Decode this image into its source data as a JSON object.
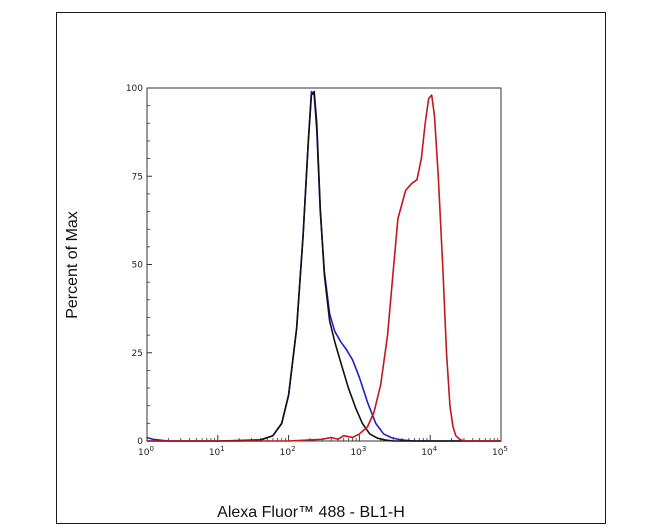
{
  "chart_data": {
    "type": "line",
    "title": "",
    "xlabel": "Alexa Fluor™ 488 - BL1-H",
    "ylabel": "Percent of Max",
    "x_scale": "log",
    "xlim": [
      1,
      100000
    ],
    "ylim": [
      0,
      100
    ],
    "x_ticks": [
      {
        "value": 1,
        "base": "10",
        "exp": "0"
      },
      {
        "value": 10,
        "base": "10",
        "exp": "1"
      },
      {
        "value": 100,
        "base": "10",
        "exp": "2"
      },
      {
        "value": 1000,
        "base": "10",
        "exp": "3"
      },
      {
        "value": 10000,
        "base": "10",
        "exp": "4"
      },
      {
        "value": 100000,
        "base": "10",
        "exp": "5"
      }
    ],
    "y_ticks": [
      {
        "value": 0,
        "label": "0"
      },
      {
        "value": 25,
        "label": "25"
      },
      {
        "value": 50,
        "label": "50"
      },
      {
        "value": 75,
        "label": "75"
      },
      {
        "value": 100,
        "label": "100"
      }
    ],
    "grid": false,
    "legend": "none",
    "series": [
      {
        "color": "#1f1fcc",
        "x": [
          1,
          1.2,
          1.6,
          2,
          5,
          20,
          40,
          60,
          80,
          100,
          130,
          160,
          190,
          210,
          230,
          250,
          280,
          320,
          380,
          450,
          550,
          650,
          800,
          1000,
          1300,
          1700,
          2200,
          2800,
          3500,
          4500,
          6000,
          10000,
          100000
        ],
        "y": [
          1,
          0.5,
          0.2,
          0,
          0,
          0,
          0.3,
          1.5,
          5,
          13,
          32,
          58,
          85,
          99,
          98,
          88,
          65,
          48,
          36,
          31,
          28,
          26,
          23,
          18,
          11,
          5,
          2,
          1,
          0.5,
          0.2,
          0,
          0,
          0
        ]
      },
      {
        "color": "#111111",
        "x": [
          1,
          10,
          40,
          60,
          80,
          100,
          130,
          160,
          190,
          210,
          230,
          250,
          280,
          320,
          380,
          450,
          550,
          700,
          900,
          1100,
          1400,
          1800,
          2300,
          3000,
          100000
        ],
        "y": [
          0,
          0,
          0.3,
          1.5,
          5,
          13,
          32,
          58,
          85,
          98,
          99,
          90,
          66,
          47,
          34,
          28,
          22,
          15,
          9,
          5,
          2,
          0.8,
          0.3,
          0,
          0
        ]
      },
      {
        "color": "#c4161c",
        "x": [
          1,
          100,
          300,
          400,
          500,
          600,
          800,
          1000,
          1300,
          1600,
          2000,
          2500,
          3000,
          3500,
          4500,
          5500,
          6500,
          7500,
          8500,
          9500,
          10500,
          11500,
          13000,
          15000,
          17000,
          19000,
          21000,
          23000,
          26000,
          30000,
          100000
        ],
        "y": [
          0,
          0,
          0.5,
          1,
          0.5,
          1.5,
          1,
          2,
          4,
          8,
          16,
          30,
          48,
          63,
          71,
          73,
          74,
          80,
          90,
          97,
          98,
          92,
          75,
          50,
          25,
          10,
          4,
          1.5,
          0.5,
          0,
          0
        ]
      }
    ]
  }
}
